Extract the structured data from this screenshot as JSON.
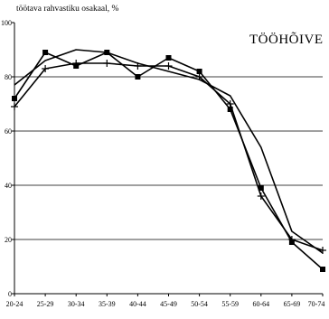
{
  "chart_data": {
    "type": "line",
    "title": "TÖÖHÕIVE",
    "ylabel": "töötava rahvastiku osakaal, %",
    "xlabel": "",
    "categories": [
      "20-24",
      "25-29",
      "30-34",
      "35-39",
      "40-44",
      "45-49",
      "50-54",
      "55-59",
      "60-64",
      "65-69",
      "70-74"
    ],
    "ylim": [
      0,
      100
    ],
    "yticks": [
      0,
      20,
      40,
      60,
      80,
      100
    ],
    "grid": true,
    "legend": "none",
    "series": [
      {
        "marker": "square",
        "values": [
          72,
          89,
          84,
          89,
          80,
          87,
          82,
          68,
          39,
          19,
          9
        ]
      },
      {
        "marker": "plus",
        "values": [
          69,
          83,
          85,
          85,
          84,
          84,
          80,
          70,
          36,
          20,
          16
        ]
      },
      {
        "marker": "none",
        "values": [
          77,
          86,
          90,
          89,
          85,
          82,
          79,
          73,
          54,
          23,
          15
        ]
      }
    ],
    "colors": {
      "line": "#000000",
      "grid": "#000000",
      "background": "#ffffff"
    }
  }
}
